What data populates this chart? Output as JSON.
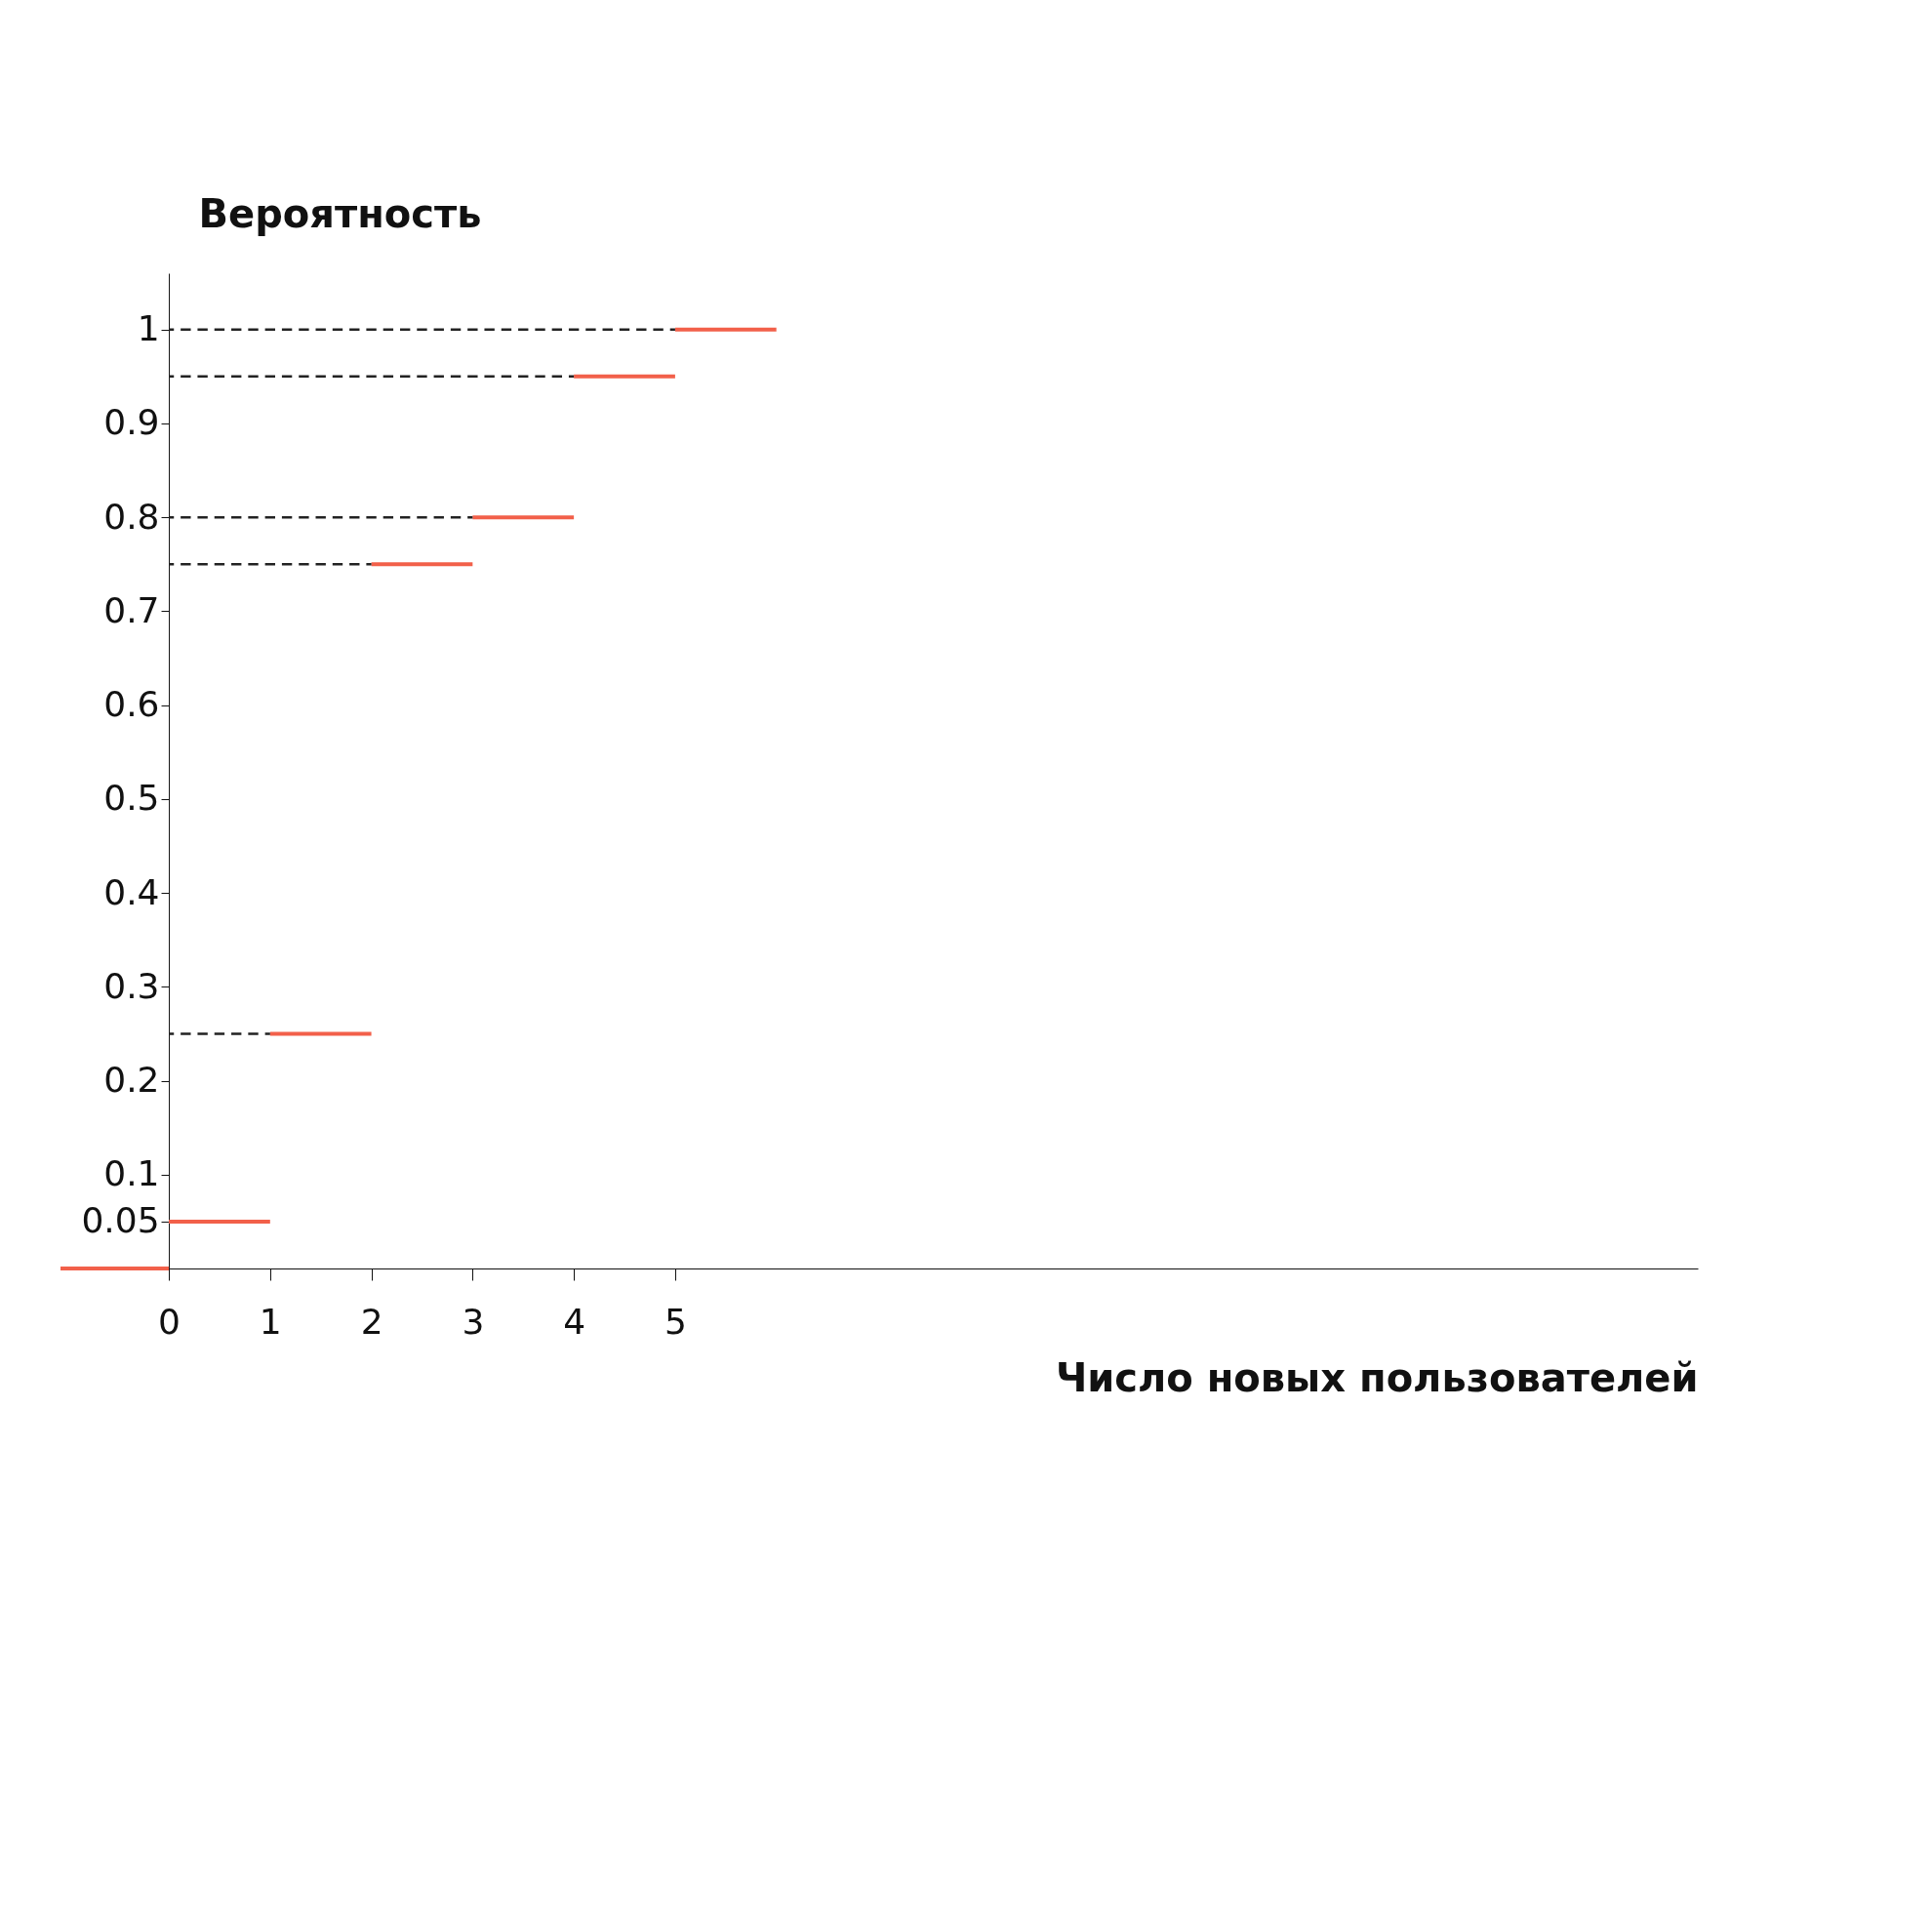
{
  "chart_data": {
    "type": "line",
    "xlabel": "Число новых пользователей",
    "ylabel": "Вероятность",
    "xlim": [
      -1.07,
      15.1
    ],
    "ylim": [
      0,
      1.06
    ],
    "xticks": [
      0,
      1,
      2,
      3,
      4,
      5
    ],
    "yticks": [
      0.05,
      0.1,
      0.2,
      0.3,
      0.4,
      0.5,
      0.6,
      0.7,
      0.8,
      0.9,
      1
    ],
    "grid": false,
    "legend": false,
    "marker": "none",
    "series": [
      {
        "line_style": "solid",
        "color": "#f2604a",
        "x": [
          -1.07,
          0,
          null,
          0,
          1,
          null,
          1,
          2,
          null,
          2,
          3,
          null,
          3,
          4,
          null,
          4,
          5,
          null,
          5,
          6
        ],
        "values": [
          0,
          0,
          null,
          0.05,
          0.05,
          null,
          0.25,
          0.25,
          null,
          0.75,
          0.75,
          null,
          0.8,
          0.8,
          null,
          0.95,
          0.95,
          null,
          1,
          1
        ]
      },
      {
        "line_style": "dashed",
        "color": "#222222",
        "x": [
          0,
          1,
          null,
          0,
          2,
          null,
          0,
          3,
          null,
          0,
          4,
          null,
          0,
          5
        ],
        "values": [
          0.25,
          0.25,
          null,
          0.75,
          0.75,
          null,
          0.8,
          0.8,
          null,
          0.95,
          0.95,
          null,
          1,
          1
        ]
      }
    ]
  }
}
